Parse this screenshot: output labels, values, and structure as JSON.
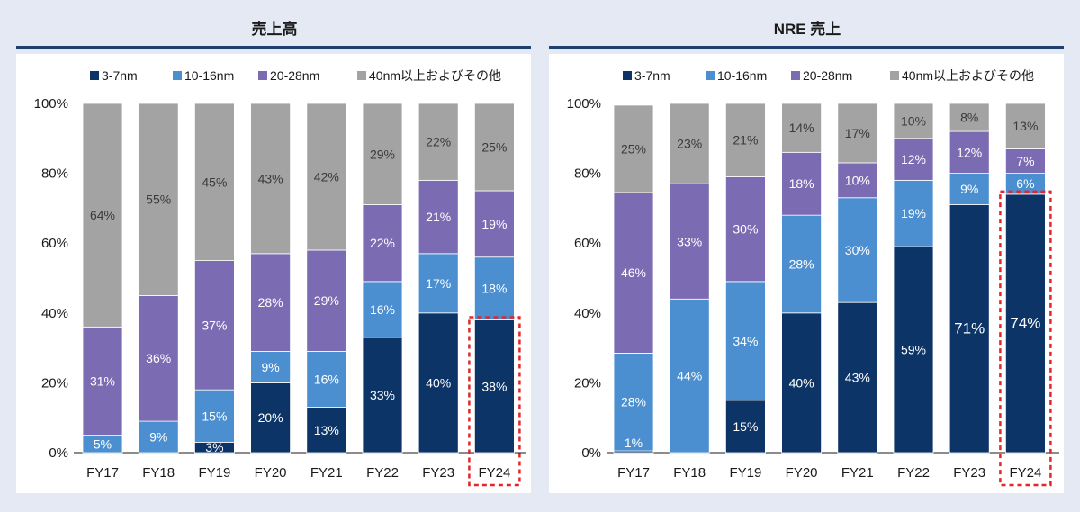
{
  "legend": [
    {
      "name": "3-7nm",
      "color": "#0c3467"
    },
    {
      "name": "10-16nm",
      "color": "#4b8fd0"
    },
    {
      "name": "20-28nm",
      "color": "#7b6bb2"
    },
    {
      "name": "40nm以上およびその他",
      "color": "#a3a3a3"
    }
  ],
  "colors": {
    "background": "#e4e9f4",
    "panel": "#ffffff",
    "title_rule": "#1f3f73",
    "highlight": "#e3262b"
  },
  "chart_data": [
    {
      "type": "bar",
      "stacked": true,
      "title": "売上高",
      "categories": [
        "FY17",
        "FY18",
        "FY19",
        "FY20",
        "FY21",
        "FY22",
        "FY23",
        "FY24"
      ],
      "yticks": [
        "0%",
        "20%",
        "40%",
        "60%",
        "80%",
        "100%"
      ],
      "ylim": [
        0,
        100
      ],
      "legend_position": "top",
      "highlight_category": "FY24",
      "series": [
        {
          "name": "3-7nm",
          "values": [
            0,
            0,
            3,
            20,
            13,
            33,
            40,
            38
          ],
          "labels": [
            "",
            "",
            "3%",
            "20%",
            "13%",
            "33%",
            "40%",
            "38%"
          ]
        },
        {
          "name": "10-16nm",
          "values": [
            5,
            9,
            15,
            9,
            16,
            16,
            17,
            18
          ],
          "labels": [
            "5%",
            "9%",
            "15%",
            "9%",
            "16%",
            "16%",
            "17%",
            "18%"
          ]
        },
        {
          "name": "20-28nm",
          "values": [
            31,
            36,
            37,
            28,
            29,
            22,
            21,
            19
          ],
          "labels": [
            "31%",
            "36%",
            "37%",
            "28%",
            "29%",
            "22%",
            "21%",
            "19%"
          ]
        },
        {
          "name": "40nm以上およびその他",
          "values": [
            64,
            55,
            45,
            43,
            42,
            29,
            22,
            25
          ],
          "labels": [
            "64%",
            "55%",
            "45%",
            "43%",
            "42%",
            "29%",
            "22%",
            "25%"
          ]
        }
      ]
    },
    {
      "type": "bar",
      "stacked": true,
      "title": "NRE 売上",
      "categories": [
        "FY17",
        "FY18",
        "FY19",
        "FY20",
        "FY21",
        "FY22",
        "FY23",
        "FY24"
      ],
      "yticks": [
        "0%",
        "20%",
        "40%",
        "60%",
        "80%",
        "100%"
      ],
      "ylim": [
        0,
        100
      ],
      "legend_position": "top",
      "highlight_category": "FY24",
      "series": [
        {
          "name": "3-7nm",
          "values": [
            0.5,
            0,
            15,
            40,
            43,
            59,
            71,
            74
          ],
          "labels": [
            "",
            "",
            "15%",
            "40%",
            "43%",
            "59%",
            "71%",
            "74%"
          ]
        },
        {
          "name": "10-16nm",
          "values": [
            28,
            44,
            34,
            28,
            30,
            19,
            9,
            6
          ],
          "labels": [
            "1%\n28%",
            "44%",
            "34%",
            "28%",
            "30%",
            "19%",
            "9%",
            "6%"
          ]
        },
        {
          "name": "20-28nm",
          "values": [
            46,
            33,
            30,
            18,
            10,
            12,
            12,
            7
          ],
          "labels": [
            "46%",
            "33%",
            "30%",
            "18%",
            "10%",
            "12%",
            "12%",
            "7%"
          ]
        },
        {
          "name": "40nm以上およびその他",
          "values": [
            25,
            23,
            21,
            14,
            17,
            10,
            8,
            13
          ],
          "labels": [
            "25%",
            "23%",
            "21%",
            "14%",
            "17%",
            "10%",
            "8%",
            "13%"
          ]
        }
      ]
    }
  ]
}
